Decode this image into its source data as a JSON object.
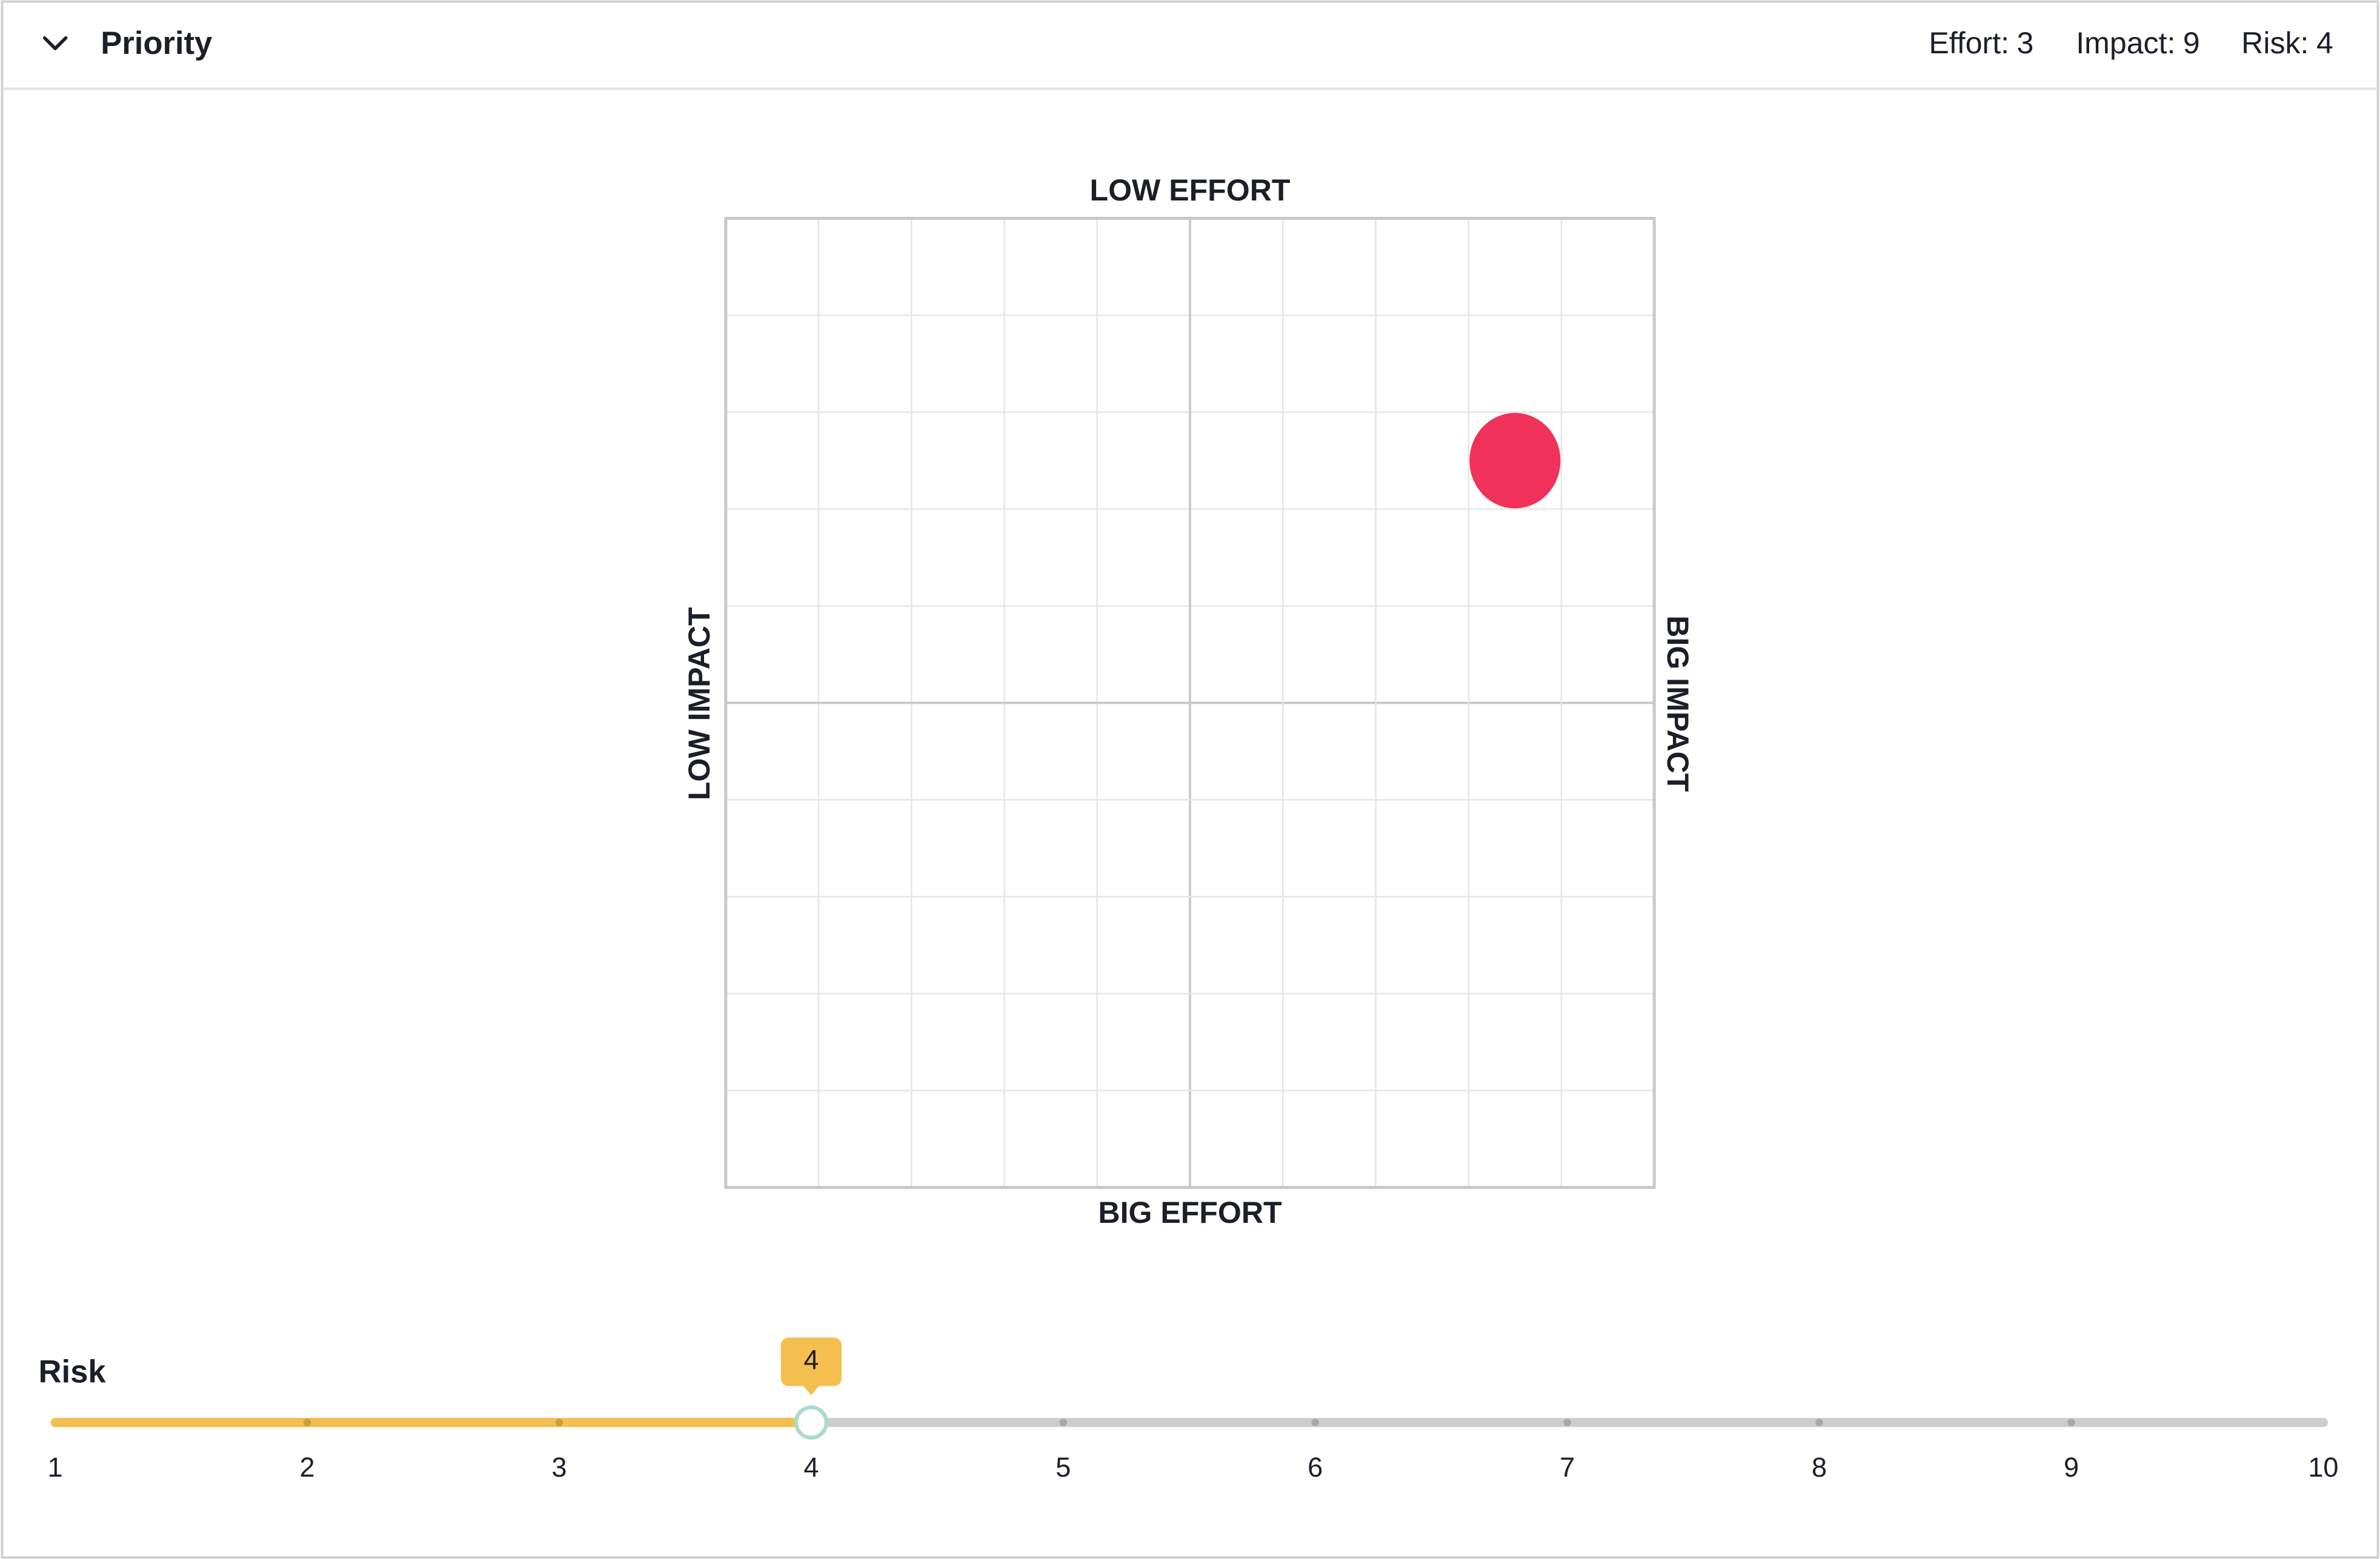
{
  "header": {
    "title": "Priority",
    "items": [
      {
        "label": "Effort:",
        "value": 3
      },
      {
        "label": "Impact:",
        "value": 9
      },
      {
        "label": "Risk:",
        "value": 4
      }
    ]
  },
  "matrix": {
    "top_label": "LOW EFFORT",
    "bottom_label": "BIG EFFORT",
    "left_label": "LOW IMPACT",
    "right_label": "BIG IMPACT",
    "effort": 3,
    "impact": 9,
    "color": "#f0325a"
  },
  "slider": {
    "label": "Risk",
    "value": 4,
    "ticks": [
      1,
      2,
      3,
      4,
      5,
      6,
      7,
      8,
      9,
      10
    ],
    "color": "#f4bf4f"
  }
}
